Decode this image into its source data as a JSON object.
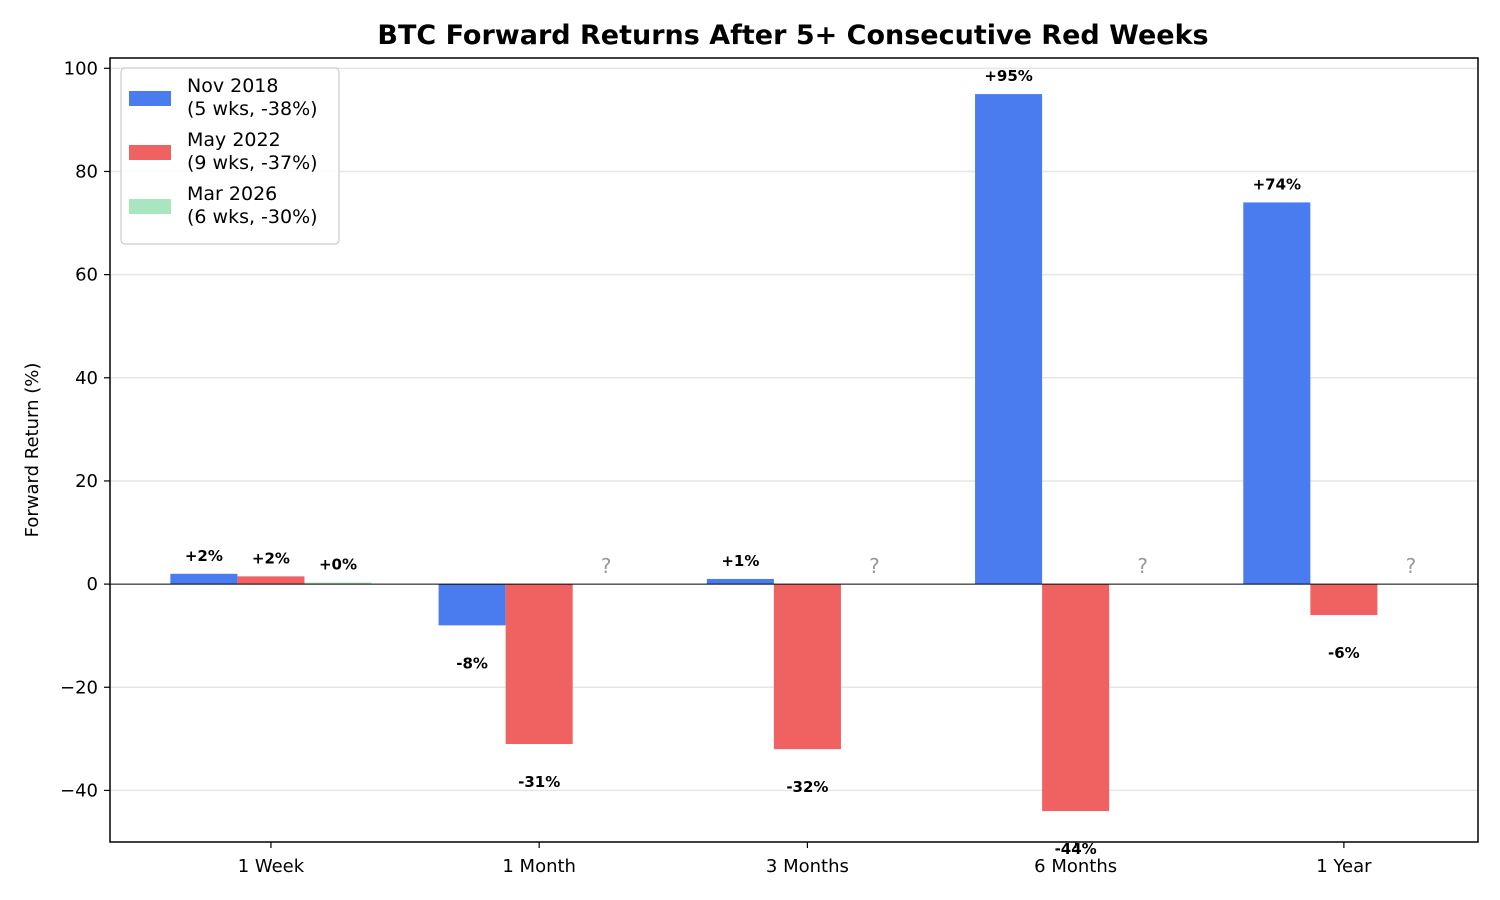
{
  "chart_data": {
    "type": "bar",
    "title": "BTC Forward Returns After 5+ Consecutive Red Weeks",
    "xlabel": "",
    "ylabel": "Forward Return (%)",
    "ylim": [
      -50,
      102
    ],
    "yticks": [
      -40,
      -20,
      0,
      20,
      40,
      60,
      80,
      100
    ],
    "ytick_labels": [
      "−40",
      "−20",
      "0",
      "20",
      "40",
      "60",
      "80",
      "100"
    ],
    "grid": "horizontal",
    "legend_position": "top-left",
    "categories": [
      "1 Week",
      "1 Month",
      "3 Months",
      "6 Months",
      "1 Year"
    ],
    "series": [
      {
        "name": "Nov 2018\n(5 wks, -38%)",
        "color": "#4a7cf0",
        "values": [
          2,
          -8,
          1,
          95,
          74
        ],
        "labels": [
          "+2%",
          "-8%",
          "+1%",
          "+95%",
          "+74%"
        ]
      },
      {
        "name": "May 2022\n(9 wks, -37%)",
        "color": "#f06262",
        "values": [
          1.5,
          -31,
          -32,
          -44,
          -6
        ],
        "labels": [
          "+2%",
          "-31%",
          "-32%",
          "-44%",
          "-6%"
        ]
      },
      {
        "name": "Mar 2026\n(6 wks, -30%)",
        "color": "#a8e6c0",
        "values": [
          0.3,
          null,
          null,
          null,
          null
        ],
        "labels": [
          "+0%",
          "?",
          "?",
          "?",
          "?"
        ]
      }
    ]
  }
}
